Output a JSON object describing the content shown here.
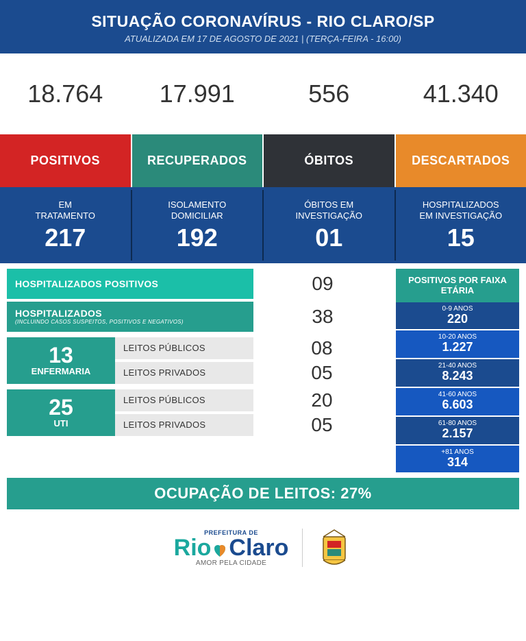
{
  "header": {
    "title": "SITUAÇÃO CORONAVÍRUS - RIO CLARO/SP",
    "subtitle": "ATUALIZADA EM 17 DE AGOSTO DE 2021 | (TERÇA-FEIRA - 16:00)"
  },
  "colors": {
    "header_bg": "#1b4b8f",
    "positivos": "#d32424",
    "recuperados": "#2b8a7a",
    "obitos": "#2f3237",
    "descartados": "#e88a2a",
    "virus_bg": "#1b4b8f",
    "teal_dark": "#269e8e",
    "teal_light": "#1bbfa8",
    "gray_row": "#e8e8e8",
    "age_bg1": "#1b4b8f",
    "age_bg2": "#1658c0"
  },
  "stats": [
    {
      "value": "18.764",
      "label": "POSITIVOS",
      "color": "#d32424"
    },
    {
      "value": "17.991",
      "label": "RECUPERADOS",
      "color": "#2b8a7a"
    },
    {
      "value": "556",
      "label": "ÓBITOS",
      "color": "#2f3237"
    },
    {
      "value": "41.340",
      "label": "DESCARTADOS",
      "color": "#e88a2a"
    }
  ],
  "secondary": [
    {
      "label1": "EM",
      "label2": "TRATAMENTO",
      "value": "217"
    },
    {
      "label1": "ISOLAMENTO",
      "label2": "DOMICILIAR",
      "value": "192"
    },
    {
      "label1": "ÓBITOS EM",
      "label2": "INVESTIGAÇÃO",
      "value": "01"
    },
    {
      "label1": "HOSPITALIZADOS",
      "label2": "EM INVESTIGAÇÃO",
      "value": "15"
    }
  ],
  "hosp_rows": [
    {
      "label": "HOSPITALIZADOS POSITIVOS",
      "sub": "",
      "value": "09",
      "bg": "#1bbfa8"
    },
    {
      "label": "HOSPITALIZADOS",
      "sub": "(INCLUINDO CASOS SUSPEITOS, POSITIVOS E NEGATIVOS)",
      "value": "38",
      "bg": "#269e8e"
    }
  ],
  "beds": [
    {
      "num": "13",
      "label": "ENFERMARIA",
      "rows": [
        {
          "label": "LEITOS PÚBLICOS",
          "value": "08"
        },
        {
          "label": "LEITOS PRIVADOS",
          "value": "05"
        }
      ]
    },
    {
      "num": "25",
      "label": "UTI",
      "rows": [
        {
          "label": "LEITOS PÚBLICOS",
          "value": "20"
        },
        {
          "label": "LEITOS PRIVADOS",
          "value": "05"
        }
      ]
    }
  ],
  "age_header": "POSITIVOS POR FAIXA ETÁRIA",
  "ages": [
    {
      "range": "0-9 ANOS",
      "count": "220",
      "bg": "#1b4b8f"
    },
    {
      "range": "10-20 ANOS",
      "count": "1.227",
      "bg": "#1658c0"
    },
    {
      "range": "21-40 ANOS",
      "count": "8.243",
      "bg": "#1b4b8f"
    },
    {
      "range": "41-60 ANOS",
      "count": "6.603",
      "bg": "#1658c0"
    },
    {
      "range": "61-80 ANOS",
      "count": "2.157",
      "bg": "#1b4b8f"
    },
    {
      "range": "+81 ANOS",
      "count": "314",
      "bg": "#1658c0"
    }
  ],
  "occupancy": "OCUPAÇÃO DE LEITOS: 27%",
  "footer": {
    "prefeitura": "PREFEITURA DE",
    "rio": "Rio",
    "claro": "Claro",
    "amor": "AMOR PELA CIDADE"
  }
}
